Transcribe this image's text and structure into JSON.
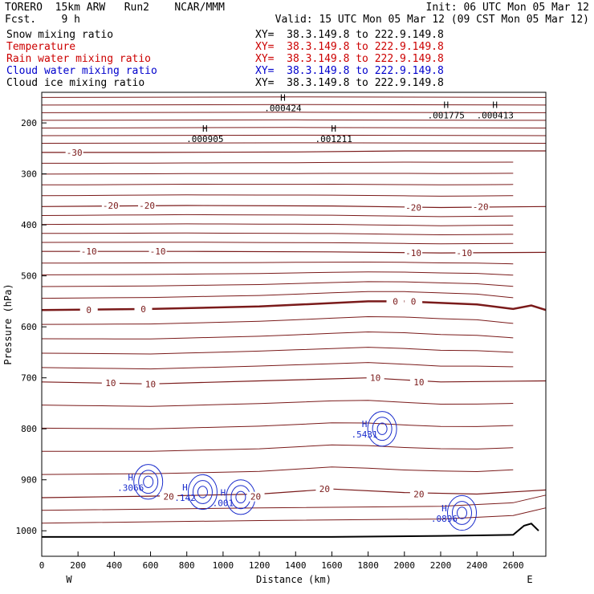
{
  "header": {
    "model": "TORERO  15km ARW   Run2    NCAR/MMM",
    "fcst": "Fcst.    9 h",
    "init": "Init: 06 UTC Mon 05 Mar 12",
    "valid": "Valid: 15 UTC Mon 05 Mar 12 (09 CST Mon 05 Mar 12)"
  },
  "fields": [
    {
      "name": "Snow mixing ratio",
      "xy": "XY=  38.3.149.8 to 222.9.149.8",
      "color": "#000000"
    },
    {
      "name": "Temperature",
      "xy": "XY=  38.3.149.8 to 222.9.149.8",
      "color": "#cc0000"
    },
    {
      "name": "Rain water mixing ratio",
      "xy": "XY=  38.3.149.8 to 222.9.149.8",
      "color": "#cc0000"
    },
    {
      "name": "Cloud water mixing ratio",
      "xy": "XY=  38.3.149.8 to 222.9.149.8",
      "color": "#0000cc"
    },
    {
      "name": "Cloud ice mixing ratio",
      "xy": "XY=  38.3.149.8 to 222.9.149.8",
      "color": "#000000"
    }
  ],
  "chart_data": {
    "type": "contour",
    "xlabel": "Distance (km)",
    "ylabel": "Pressure (hPa)",
    "xlim": [
      0,
      2780
    ],
    "ylim": [
      1050,
      140
    ],
    "x_ticks": [
      0,
      200,
      400,
      600,
      800,
      1000,
      1200,
      1400,
      1600,
      1800,
      2000,
      2200,
      2400,
      2600
    ],
    "y_ticks": [
      200,
      300,
      400,
      500,
      600,
      700,
      800,
      900,
      1000
    ],
    "x_end_labels": {
      "left": "W",
      "right": "E"
    },
    "temperature_isotherms": [
      {
        "level": -30,
        "labels": [
          {
            "x": 180,
            "p": 258
          }
        ],
        "points": [
          [
            0,
            258
          ],
          [
            600,
            258
          ],
          [
            1400,
            257
          ],
          [
            2000,
            255
          ],
          [
            2780,
            255
          ]
        ]
      },
      {
        "level": -20,
        "labels": [
          {
            "x": 380,
            "p": 362
          },
          {
            "x": 580,
            "p": 362
          },
          {
            "x": 2050,
            "p": 366
          },
          {
            "x": 2420,
            "p": 364
          }
        ],
        "points": [
          [
            0,
            364
          ],
          [
            800,
            362
          ],
          [
            1600,
            363
          ],
          [
            2200,
            366
          ],
          [
            2780,
            364
          ]
        ]
      },
      {
        "level": -10,
        "labels": [
          {
            "x": 260,
            "p": 452
          },
          {
            "x": 640,
            "p": 452
          },
          {
            "x": 2050,
            "p": 455
          },
          {
            "x": 2330,
            "p": 455
          }
        ],
        "points": [
          [
            0,
            452
          ],
          [
            800,
            452
          ],
          [
            1600,
            453
          ],
          [
            2200,
            455
          ],
          [
            2780,
            454
          ]
        ]
      },
      {
        "level": 0,
        "labels": [
          {
            "x": 260,
            "p": 567
          },
          {
            "x": 560,
            "p": 565
          },
          {
            "x": 1950,
            "p": 550
          },
          {
            "x": 2050,
            "p": 550
          }
        ],
        "points": [
          [
            0,
            567
          ],
          [
            600,
            565
          ],
          [
            1200,
            560
          ],
          [
            1800,
            550
          ],
          [
            2000,
            550
          ],
          [
            2400,
            556
          ],
          [
            2600,
            565
          ],
          [
            2700,
            558
          ],
          [
            2780,
            567
          ]
        ]
      },
      {
        "level": 10,
        "labels": [
          {
            "x": 380,
            "p": 710
          },
          {
            "x": 600,
            "p": 712
          },
          {
            "x": 1840,
            "p": 700
          },
          {
            "x": 2080,
            "p": 708
          }
        ],
        "points": [
          [
            0,
            708
          ],
          [
            600,
            712
          ],
          [
            1200,
            706
          ],
          [
            1800,
            700
          ],
          [
            2200,
            708
          ],
          [
            2780,
            706
          ]
        ]
      },
      {
        "level": 20,
        "labels": [
          {
            "x": 700,
            "p": 933
          },
          {
            "x": 1180,
            "p": 933
          },
          {
            "x": 1560,
            "p": 918
          },
          {
            "x": 2080,
            "p": 928
          }
        ],
        "points": [
          [
            0,
            935
          ],
          [
            600,
            932
          ],
          [
            1200,
            928
          ],
          [
            1600,
            918
          ],
          [
            2000,
            925
          ],
          [
            2400,
            928
          ],
          [
            2780,
            920
          ]
        ]
      }
    ],
    "maxima": [
      {
        "field": "Cloud ice mixing ratio",
        "value": ".000424",
        "x": 1330,
        "p": 160
      },
      {
        "field": "Cloud ice mixing ratio",
        "value": ".001775",
        "x": 2230,
        "p": 174
      },
      {
        "field": "Cloud ice mixing ratio",
        "value": ".000413",
        "x": 2500,
        "p": 174
      },
      {
        "field": "Snow mixing ratio",
        "value": ".000905",
        "x": 900,
        "p": 220
      },
      {
        "field": "Snow mixing ratio",
        "value": ".001211",
        "x": 1610,
        "p": 220
      },
      {
        "field": "Cloud water mixing ratio",
        "value": ".5431",
        "x": 1780,
        "p": 800
      },
      {
        "field": "Cloud water mixing ratio",
        "value": ".3066",
        "x": 490,
        "p": 904
      },
      {
        "field": "Cloud water mixing ratio",
        "value": ".142",
        "x": 790,
        "p": 924
      },
      {
        "field": "Cloud water mixing ratio",
        "value": ".001",
        "x": 1000,
        "p": 934
      },
      {
        "field": "Cloud water mixing ratio",
        "value": ".0896",
        "x": 2220,
        "p": 965
      }
    ],
    "ground_profile": [
      [
        0,
        1012
      ],
      [
        800,
        1012
      ],
      [
        1600,
        1012
      ],
      [
        2200,
        1010
      ],
      [
        2600,
        1008
      ],
      [
        2660,
        990
      ],
      [
        2700,
        986
      ],
      [
        2740,
        1000
      ]
    ]
  }
}
